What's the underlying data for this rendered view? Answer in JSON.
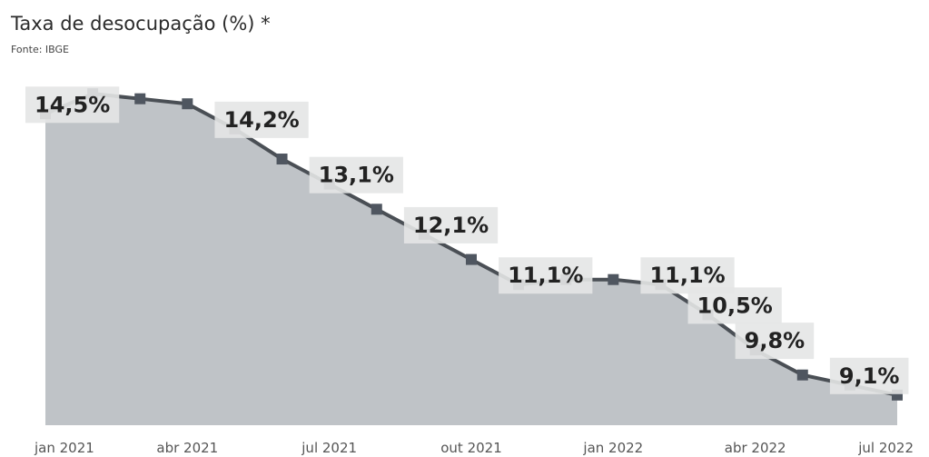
{
  "title": "Taxa de desocupação (%) *",
  "source": "Fonte: IBGE",
  "chart_data": {
    "type": "area",
    "x": [
      "jan 2021",
      "fev 2021",
      "mar 2021",
      "abr 2021",
      "mai 2021",
      "jun 2021",
      "jul 2021",
      "ago 2021",
      "set 2021",
      "out 2021",
      "nov 2021",
      "dez 2021",
      "jan 2022",
      "fev 2022",
      "mar 2022",
      "abr 2022",
      "mai 2022",
      "jun 2022",
      "jul 2022"
    ],
    "values": [
      14.5,
      14.9,
      14.8,
      14.7,
      14.2,
      13.6,
      13.1,
      12.6,
      12.1,
      11.6,
      11.1,
      11.2,
      11.2,
      11.1,
      10.5,
      9.8,
      9.3,
      9.1,
      8.9
    ],
    "tick_labels": [
      "jan 2021",
      "abr 2021",
      "jul 2021",
      "out 2021",
      "jan 2022",
      "abr 2022",
      "jul 2022"
    ],
    "data_labels": [
      {
        "index": 0,
        "text": "14,5%"
      },
      {
        "index": 4,
        "text": "14,2%"
      },
      {
        "index": 6,
        "text": "13,1%"
      },
      {
        "index": 8,
        "text": "12,1%"
      },
      {
        "index": 10,
        "text": "11,1%"
      },
      {
        "index": 13,
        "text": "11,1%"
      },
      {
        "index": 14,
        "text": "10,5%"
      },
      {
        "index": 15,
        "text": "9,8%"
      },
      {
        "index": 17,
        "text": "9,1%"
      }
    ],
    "ylim": [
      8.3,
      15.5
    ],
    "colors": {
      "area": "#bfc3c7",
      "line": "#4a4f55",
      "marker": "#4f5660",
      "label_bg": "#e4e5e6",
      "label_text": "#222222",
      "tick_text": "#555555"
    }
  }
}
